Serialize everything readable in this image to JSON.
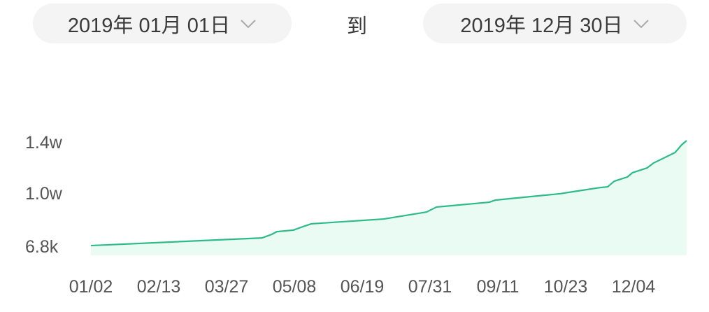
{
  "date_range": {
    "start": "2019年 01月 01日",
    "separator": "到",
    "end": "2019年 12月 30日",
    "dropdown_icon": "chevron-down-icon"
  },
  "chart_data": {
    "type": "area",
    "year": 2019,
    "color": "#2dbb8a",
    "fill_color": "#eafbf4",
    "grid": false,
    "yticks": [
      {
        "value": 6800,
        "label": "6.8k"
      },
      {
        "value": 10000,
        "label": "1.0w"
      },
      {
        "value": 14000,
        "label": "1.4w"
      }
    ],
    "xticks": [
      "01/02",
      "02/13",
      "03/27",
      "05/08",
      "06/19",
      "07/31",
      "09/11",
      "10/23",
      "12/04"
    ],
    "x_range": [
      "2019-01-02",
      "2019-12-30"
    ],
    "points": [
      [
        "2019-01-02",
        6840
      ],
      [
        "2019-04-16",
        7300
      ],
      [
        "2019-04-22",
        7520
      ],
      [
        "2019-04-25",
        7680
      ],
      [
        "2019-05-05",
        7770
      ],
      [
        "2019-05-12",
        8020
      ],
      [
        "2019-05-16",
        8150
      ],
      [
        "2019-06-29",
        8440
      ],
      [
        "2019-07-25",
        8860
      ],
      [
        "2019-07-31",
        9160
      ],
      [
        "2019-09-01",
        9450
      ],
      [
        "2019-09-05",
        9580
      ],
      [
        "2019-10-14",
        9960
      ],
      [
        "2019-10-22",
        10110
      ],
      [
        "2019-11-08",
        10440
      ],
      [
        "2019-11-12",
        10490
      ],
      [
        "2019-11-16",
        10930
      ],
      [
        "2019-11-24",
        11260
      ],
      [
        "2019-11-27",
        11590
      ],
      [
        "2019-12-06",
        11970
      ],
      [
        "2019-12-10",
        12360
      ],
      [
        "2019-12-23",
        13180
      ],
      [
        "2019-12-27",
        13780
      ],
      [
        "2019-12-30",
        14110
      ]
    ]
  }
}
